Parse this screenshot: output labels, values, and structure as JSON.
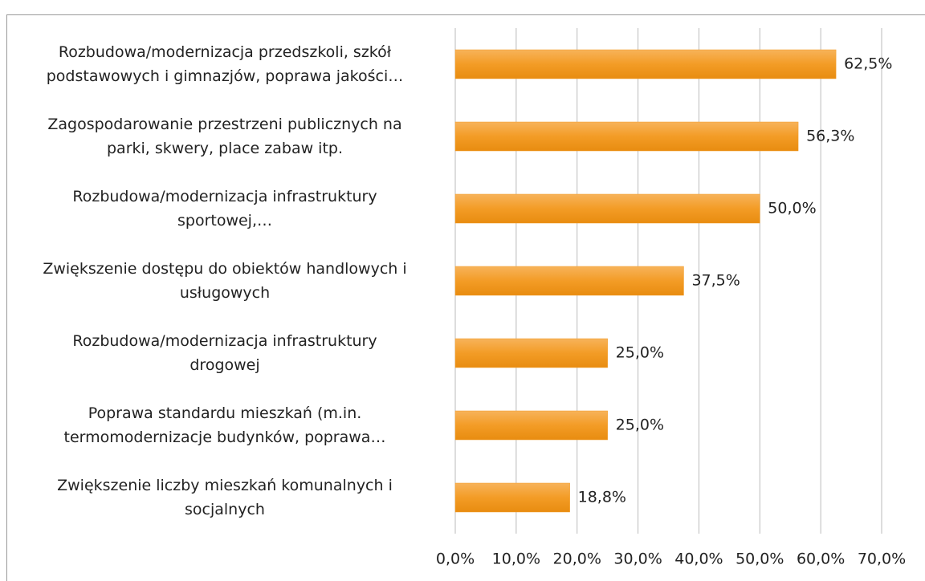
{
  "chart_data": {
    "type": "hbar",
    "categories": [
      "Rozbudowa/modernizacja przedszkoli, szkół\npodstawowych i gimnazjów, poprawa jakości…",
      "Zagospodarowanie przestrzeni publicznych na\nparki, skwery, place zabaw itp.",
      "Rozbudowa/modernizacja infrastruktury\nsportowej,…",
      "Zwiększenie dostępu do obiektów handlowych i\nusługowych",
      "Rozbudowa/modernizacja infrastruktury\ndrogowej",
      "Poprawa standardu mieszkań (m.in.\ntermomodernizacje budynków, poprawa…",
      "Zwiększenie liczby mieszkań komunalnych i\nsocjalnych"
    ],
    "values": [
      62.5,
      56.3,
      50.0,
      37.5,
      25.0,
      25.0,
      18.8
    ],
    "value_labels": [
      "62,5%",
      "56,3%",
      "50,0%",
      "37,5%",
      "25,0%",
      "25,0%",
      "18,8%"
    ],
    "color": "#f39c26",
    "xlim": [
      0,
      70
    ],
    "xticks": [
      {
        "value": 0,
        "label": "0,0%"
      },
      {
        "value": 10,
        "label": "10,0%"
      },
      {
        "value": 20,
        "label": "20,0%"
      },
      {
        "value": 30,
        "label": "30,0%"
      },
      {
        "value": 40,
        "label": "40,0%"
      },
      {
        "value": 50,
        "label": "50,0%"
      },
      {
        "value": 60,
        "label": "60,0%"
      },
      {
        "value": 70,
        "label": "70,0%"
      }
    ],
    "grid": true
  }
}
